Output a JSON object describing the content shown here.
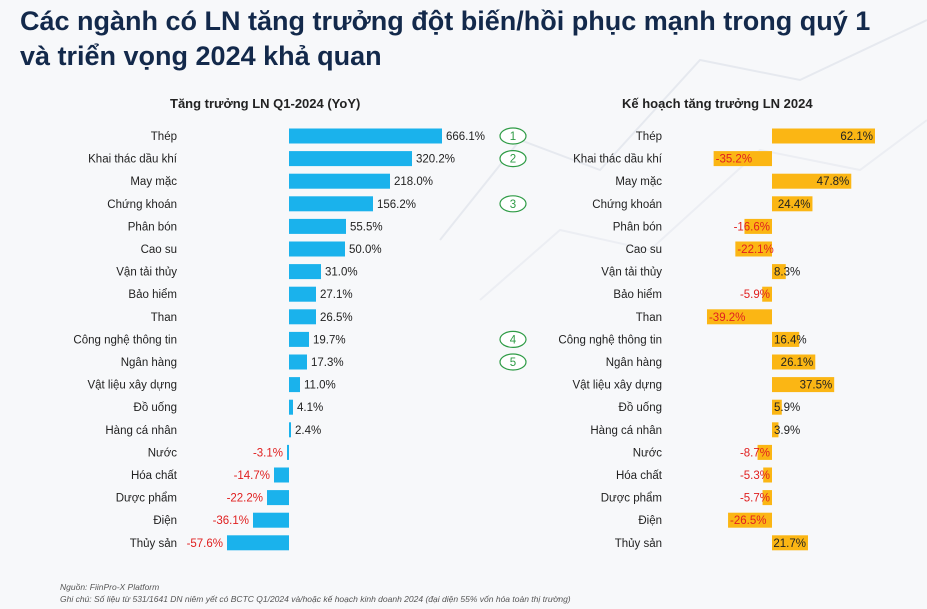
{
  "title_line1": "Các ngành có LN tăng trưởng đột biến/hồi phục mạnh trong quý 1",
  "title_line2": "và triển vọng 2024 khả quan",
  "colors": {
    "title": "#13294b",
    "left_bar": "#1ab2ec",
    "right_bar": "#fbb614",
    "negative_label": "#e02020",
    "badge": "#2e9b45"
  },
  "chart_data": [
    {
      "type": "bar",
      "orientation": "horizontal",
      "title": "Tăng trưởng LN Q1-2024 (YoY)",
      "categories": [
        "Thép",
        "Khai thác dầu khí",
        "May mặc",
        "Chứng khoán",
        "Phân bón",
        "Cao su",
        "Vận tải thủy",
        "Bảo hiểm",
        "Than",
        "Công nghệ thông tin",
        "Ngân hàng",
        "Vật liệu xây dựng",
        "Đồ uống",
        "Hàng cá nhân",
        "Nước",
        "Hóa chất",
        "Dược phẩm",
        "Điện",
        "Thủy sản"
      ],
      "values": [
        666.1,
        320.2,
        218.0,
        156.2,
        55.5,
        50.0,
        31.0,
        27.1,
        26.5,
        19.7,
        17.3,
        11.0,
        4.1,
        2.4,
        -3.1,
        -14.7,
        -22.2,
        -36.1,
        -57.6
      ],
      "labels": [
        "666.1%",
        "320.2%",
        "218.0%",
        "156.2%",
        "55.5%",
        "50.0%",
        "31.0%",
        "27.1%",
        "26.5%",
        "19.7%",
        "17.3%",
        "11.0%",
        "4.1%",
        "2.4%",
        "-3.1%",
        "-14.7%",
        "-22.2%",
        "-36.1%",
        "-57.6%"
      ],
      "axis_note": "non-linear scale, axis not shown"
    },
    {
      "type": "bar",
      "orientation": "horizontal",
      "title": "Kế hoạch tăng trưởng LN 2024",
      "categories": [
        "Thép",
        "Khai thác dầu khí",
        "May mặc",
        "Chứng khoán",
        "Phân bón",
        "Cao su",
        "Vận tải thủy",
        "Bảo hiểm",
        "Than",
        "Công nghệ thông tin",
        "Ngân hàng",
        "Vật liệu xây dựng",
        "Đồ uống",
        "Hàng cá nhân",
        "Nước",
        "Hóa chất",
        "Dược phẩm",
        "Điện",
        "Thủy sản"
      ],
      "values": [
        62.1,
        -35.2,
        47.8,
        24.4,
        -16.6,
        -22.1,
        8.3,
        -5.9,
        -39.2,
        16.4,
        26.1,
        37.5,
        5.9,
        3.9,
        -8.7,
        -5.3,
        -5.7,
        -26.5,
        21.7
      ],
      "labels": [
        "62.1%",
        "-35.2%",
        "47.8%",
        "24.4%",
        "-16.6%",
        "-22.1%",
        "8.3%",
        "-5.9%",
        "-39.2%",
        "16.4%",
        "26.1%",
        "37.5%",
        "5.9%",
        "3.9%",
        "-8.7%",
        "-5.3%",
        "-5.7%",
        "-26.5%",
        "21.7%"
      ]
    }
  ],
  "badges": [
    {
      "row": 0,
      "text": "1"
    },
    {
      "row": 1,
      "text": "2"
    },
    {
      "row": 3,
      "text": "3"
    },
    {
      "row": 9,
      "text": "4"
    },
    {
      "row": 10,
      "text": "5"
    }
  ],
  "footer": {
    "source": "Nguồn: FiinPro-X Platform",
    "note": "Ghi chú: Số liệu từ 531/1641 DN niêm yết có BCTC Q1/2024 và/hoặc kế hoạch kinh doanh 2024 (đại diện 55% vốn hóa toàn thị trường)"
  }
}
